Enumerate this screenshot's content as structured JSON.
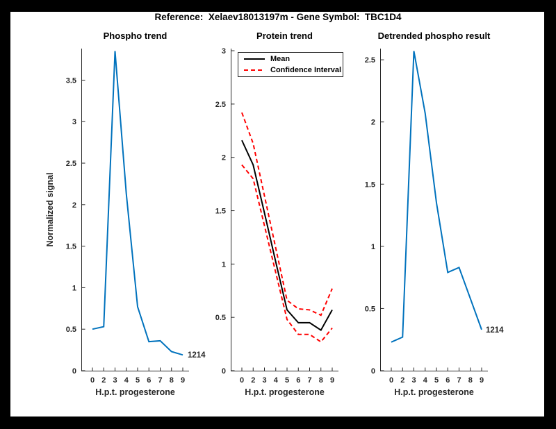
{
  "figure": {
    "suptitle": "Reference:  Xelaev18013197m - Gene Symbol:  TBC1D4",
    "background_color": "#ffffff",
    "frame_color": "#000000",
    "axis_color": "#262626"
  },
  "chart_data": [
    {
      "type": "line",
      "title": "Phospho trend",
      "xlabel": "H.p.t. progesterone",
      "ylabel": "Normalized signal",
      "categories": [
        "0",
        "2",
        "3",
        "4",
        "5",
        "6",
        "7",
        "8",
        "9"
      ],
      "yticks": [
        "0",
        "0.5",
        "1",
        "1.5",
        "2",
        "2.5",
        "3",
        "3.5"
      ],
      "ylim": [
        0,
        3.88
      ],
      "grid": false,
      "series": [
        {
          "name": "Phospho signal",
          "color": "#0072bd",
          "style": "solid",
          "values": [
            0.5,
            0.53,
            3.85,
            2.13,
            0.77,
            0.35,
            0.36,
            0.23,
            0.19
          ]
        }
      ],
      "annotation": "1214"
    },
    {
      "type": "line",
      "title": "Protein trend",
      "xlabel": "H.p.t. progesterone",
      "ylabel": "",
      "categories": [
        "0",
        "2",
        "3",
        "4",
        "5",
        "6",
        "7",
        "8",
        "9"
      ],
      "yticks": [
        "0",
        "0.5",
        "1",
        "1.5",
        "2",
        "2.5",
        "3"
      ],
      "ylim": [
        0,
        3.02
      ],
      "grid": false,
      "series": [
        {
          "name": "Mean",
          "color": "#000000",
          "style": "solid",
          "values": [
            2.16,
            1.93,
            1.48,
            1.02,
            0.57,
            0.45,
            0.45,
            0.38,
            0.57
          ]
        },
        {
          "name": "Confidence Interval upper",
          "color": "#ff0000",
          "style": "dashed",
          "values": [
            2.42,
            2.13,
            1.64,
            1.15,
            0.66,
            0.58,
            0.57,
            0.52,
            0.77
          ]
        },
        {
          "name": "Confidence Interval lower",
          "color": "#ff0000",
          "style": "dashed",
          "values": [
            1.93,
            1.8,
            1.36,
            0.92,
            0.48,
            0.34,
            0.34,
            0.27,
            0.4
          ]
        }
      ],
      "legend": {
        "position": "inside-top",
        "items": [
          {
            "label": "Mean",
            "color": "#000000",
            "style": "solid"
          },
          {
            "label": "Confidence Interval",
            "color": "#ff0000",
            "style": "dashed"
          }
        ]
      },
      "annotation": ""
    },
    {
      "type": "line",
      "title": "Detrended phospho result",
      "xlabel": "H.p.t. progesterone",
      "ylabel": "",
      "categories": [
        "0",
        "2",
        "3",
        "4",
        "5",
        "6",
        "7",
        "8",
        "9"
      ],
      "yticks": [
        "0",
        "0.5",
        "1",
        "1.5",
        "2",
        "2.5"
      ],
      "ylim": [
        0,
        2.59
      ],
      "grid": false,
      "series": [
        {
          "name": "Detrended phospho",
          "color": "#0072bd",
          "style": "solid",
          "values": [
            0.23,
            0.27,
            2.57,
            2.07,
            1.35,
            0.79,
            0.83,
            0.58,
            0.33
          ]
        }
      ],
      "annotation": "1214"
    }
  ]
}
